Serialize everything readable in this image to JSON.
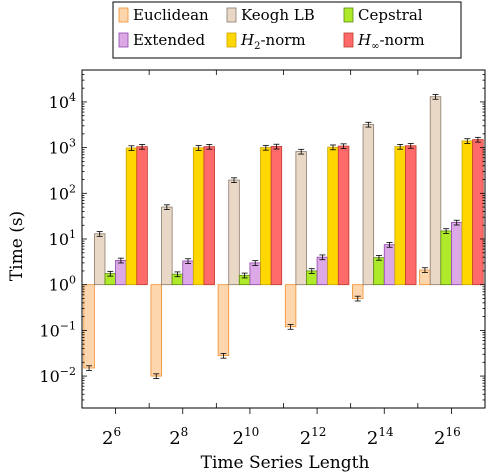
{
  "chart_data": {
    "type": "bar",
    "xlabel": "Time Series Length",
    "ylabel": "Time (s)",
    "yscale": "log",
    "ylim": [
      0.002,
      50000
    ],
    "bar_baseline": 1,
    "grid": false,
    "legend_position": "top",
    "categories": [
      {
        "base": "2",
        "exp": "6"
      },
      {
        "base": "2",
        "exp": "8"
      },
      {
        "base": "2",
        "exp": "10"
      },
      {
        "base": "2",
        "exp": "12"
      },
      {
        "base": "2",
        "exp": "14"
      },
      {
        "base": "2",
        "exp": "16"
      }
    ],
    "y_ticks": [
      {
        "value": 0.01,
        "base": "10",
        "exp": "−2"
      },
      {
        "value": 0.1,
        "base": "10",
        "exp": "−1"
      },
      {
        "value": 1,
        "base": "10",
        "exp": "0"
      },
      {
        "value": 10,
        "base": "10",
        "exp": "1"
      },
      {
        "value": 100,
        "base": "10",
        "exp": "2"
      },
      {
        "value": 1000,
        "base": "10",
        "exp": "3"
      },
      {
        "value": 10000,
        "base": "10",
        "exp": "4"
      }
    ],
    "series": [
      {
        "name": "Euclidean",
        "fill": "#FDD6AE",
        "stroke": "#F28E2B",
        "values": [
          0.015,
          0.01,
          0.028,
          0.12,
          0.5,
          2.1
        ]
      },
      {
        "name": "Keogh LB",
        "fill": "#E9D8C5",
        "stroke": "#8C7B6B",
        "values": [
          13,
          50,
          195,
          820,
          3200,
          13000
        ]
      },
      {
        "name": "Cepstral",
        "fill": "#AEEA2A",
        "stroke": "#5A8A10",
        "values": [
          1.75,
          1.7,
          1.6,
          2.0,
          3.9,
          15
        ]
      },
      {
        "name": "Extended",
        "fill": "#DDA8E6",
        "stroke": "#8E44AD",
        "values": [
          3.4,
          3.3,
          3.0,
          4.0,
          7.5,
          23
        ]
      },
      {
        "name": "H_2-norm",
        "fill": "#FFD700",
        "stroke": "#C9A300",
        "values": [
          980,
          990,
          1000,
          1020,
          1050,
          1400
        ]
      },
      {
        "name": "H_∞-norm",
        "fill": "#FF6B6B",
        "stroke": "#C0392B",
        "values": [
          1050,
          1050,
          1060,
          1080,
          1100,
          1500
        ]
      }
    ]
  }
}
